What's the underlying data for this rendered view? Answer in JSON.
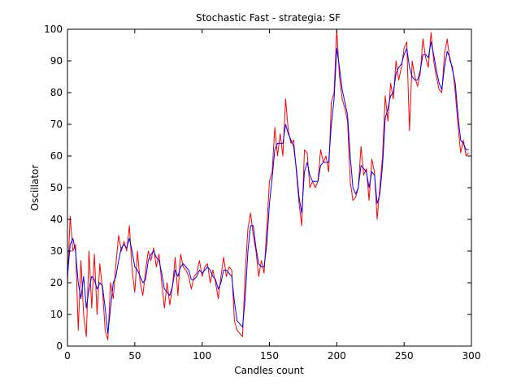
{
  "chart_data": {
    "type": "line",
    "title": "Stochastic Fast - strategia: SF",
    "xlabel": "Candles count",
    "ylabel": "Oscillator",
    "xlim": [
      0,
      300
    ],
    "ylim": [
      0,
      100
    ],
    "xticks": [
      0,
      50,
      100,
      150,
      200,
      250,
      300
    ],
    "yticks": [
      0,
      10,
      20,
      30,
      40,
      50,
      60,
      70,
      80,
      90,
      100
    ],
    "grid": false,
    "legend": "none",
    "series": [
      {
        "color": "#ff0000",
        "x": [
          0,
          2,
          4,
          6,
          8,
          10,
          12,
          14,
          16,
          18,
          20,
          22,
          24,
          26,
          28,
          30,
          32,
          34,
          36,
          38,
          40,
          42,
          44,
          46,
          48,
          50,
          52,
          54,
          56,
          58,
          60,
          62,
          64,
          66,
          68,
          70,
          72,
          74,
          76,
          78,
          80,
          82,
          84,
          86,
          88,
          90,
          92,
          94,
          96,
          98,
          100,
          102,
          104,
          106,
          108,
          110,
          112,
          114,
          116,
          118,
          120,
          122,
          124,
          126,
          128,
          130,
          132,
          134,
          136,
          138,
          140,
          142,
          144,
          146,
          148,
          150,
          152,
          154,
          156,
          158,
          160,
          162,
          164,
          166,
          168,
          170,
          172,
          174,
          176,
          178,
          180,
          182,
          184,
          186,
          188,
          190,
          192,
          194,
          196,
          198,
          200,
          202,
          204,
          206,
          208,
          210,
          212,
          214,
          216,
          218,
          220,
          222,
          224,
          226,
          228,
          230,
          232,
          234,
          236,
          238,
          240,
          242,
          244,
          246,
          248,
          250,
          252,
          254,
          256,
          258,
          260,
          262,
          264,
          266,
          268,
          270,
          272,
          274,
          276,
          278,
          280,
          282,
          284,
          286,
          288,
          290,
          292,
          294,
          296,
          298
        ],
        "values": [
          20,
          41,
          30,
          32,
          5,
          27,
          10,
          3,
          30,
          12,
          29,
          10,
          26,
          18,
          5,
          2,
          20,
          15,
          26,
          35,
          30,
          33,
          30,
          38,
          24,
          17,
          30,
          20,
          16,
          24,
          30,
          27,
          31,
          25,
          29,
          20,
          12,
          20,
          13,
          19,
          28,
          16,
          29,
          25,
          24,
          22,
          18,
          22,
          23,
          27,
          22,
          25,
          26,
          20,
          24,
          20,
          15,
          22,
          28,
          22,
          25,
          24,
          8,
          5,
          4,
          3,
          23,
          37,
          42,
          35,
          30,
          22,
          27,
          23,
          37,
          52,
          55,
          69,
          60,
          67,
          60,
          78,
          68,
          64,
          65,
          55,
          45,
          38,
          62,
          61,
          50,
          52,
          50,
          52,
          62,
          58,
          60,
          55,
          77,
          80,
          100,
          85,
          78,
          75,
          71,
          52,
          46,
          47,
          50,
          63,
          54,
          56,
          46,
          59,
          55,
          40,
          50,
          60,
          79,
          71,
          83,
          78,
          90,
          84,
          88,
          94,
          96,
          68,
          90,
          85,
          82,
          86,
          97,
          91,
          88,
          99,
          90,
          85,
          81,
          80,
          92,
          97,
          90,
          88,
          80,
          70,
          61,
          65,
          60,
          61
        ]
      },
      {
        "color": "#0000ff",
        "x": [
          0,
          2,
          4,
          6,
          8,
          10,
          12,
          14,
          16,
          18,
          20,
          22,
          24,
          26,
          28,
          30,
          32,
          34,
          36,
          38,
          40,
          42,
          44,
          46,
          48,
          50,
          52,
          54,
          56,
          58,
          60,
          62,
          64,
          66,
          68,
          70,
          72,
          74,
          76,
          78,
          80,
          82,
          84,
          86,
          88,
          90,
          92,
          94,
          96,
          98,
          100,
          102,
          104,
          106,
          108,
          110,
          112,
          114,
          116,
          118,
          120,
          122,
          124,
          126,
          128,
          130,
          132,
          134,
          136,
          138,
          140,
          142,
          144,
          146,
          148,
          150,
          152,
          154,
          156,
          158,
          160,
          162,
          164,
          166,
          168,
          170,
          172,
          174,
          176,
          178,
          180,
          182,
          184,
          186,
          188,
          190,
          192,
          194,
          196,
          198,
          200,
          202,
          204,
          206,
          208,
          210,
          212,
          214,
          216,
          218,
          220,
          222,
          224,
          226,
          228,
          230,
          232,
          234,
          236,
          238,
          240,
          242,
          244,
          246,
          248,
          250,
          252,
          254,
          256,
          258,
          260,
          262,
          264,
          266,
          268,
          270,
          272,
          274,
          276,
          278,
          280,
          282,
          284,
          286,
          288,
          290,
          292,
          294,
          296,
          298
        ],
        "values": [
          22,
          32,
          34,
          30,
          20,
          15,
          22,
          12,
          18,
          22,
          21,
          18,
          20,
          19,
          12,
          4,
          12,
          20,
          22,
          27,
          31,
          32,
          31,
          34,
          30,
          25,
          24,
          22,
          20,
          21,
          27,
          29,
          30,
          28,
          27,
          23,
          18,
          17,
          16,
          19,
          24,
          22,
          25,
          26,
          25,
          24,
          21,
          21,
          22,
          24,
          23,
          24,
          25,
          24,
          22,
          21,
          18,
          20,
          24,
          24,
          23,
          22,
          14,
          8,
          7,
          6,
          15,
          30,
          38,
          38,
          31,
          26,
          25,
          25,
          32,
          45,
          53,
          62,
          64,
          64,
          64,
          70,
          67,
          65,
          63,
          56,
          47,
          42,
          55,
          58,
          54,
          52,
          52,
          52,
          57,
          58,
          58,
          58,
          70,
          78,
          94,
          88,
          81,
          77,
          73,
          60,
          50,
          48,
          50,
          57,
          56,
          55,
          50,
          55,
          54,
          45,
          48,
          57,
          72,
          75,
          79,
          80,
          86,
          88,
          89,
          92,
          94,
          88,
          85,
          84,
          84,
          87,
          92,
          92,
          91,
          96,
          92,
          87,
          83,
          81,
          88,
          93,
          91,
          87,
          83,
          73,
          65,
          64,
          62,
          62
        ]
      }
    ]
  }
}
